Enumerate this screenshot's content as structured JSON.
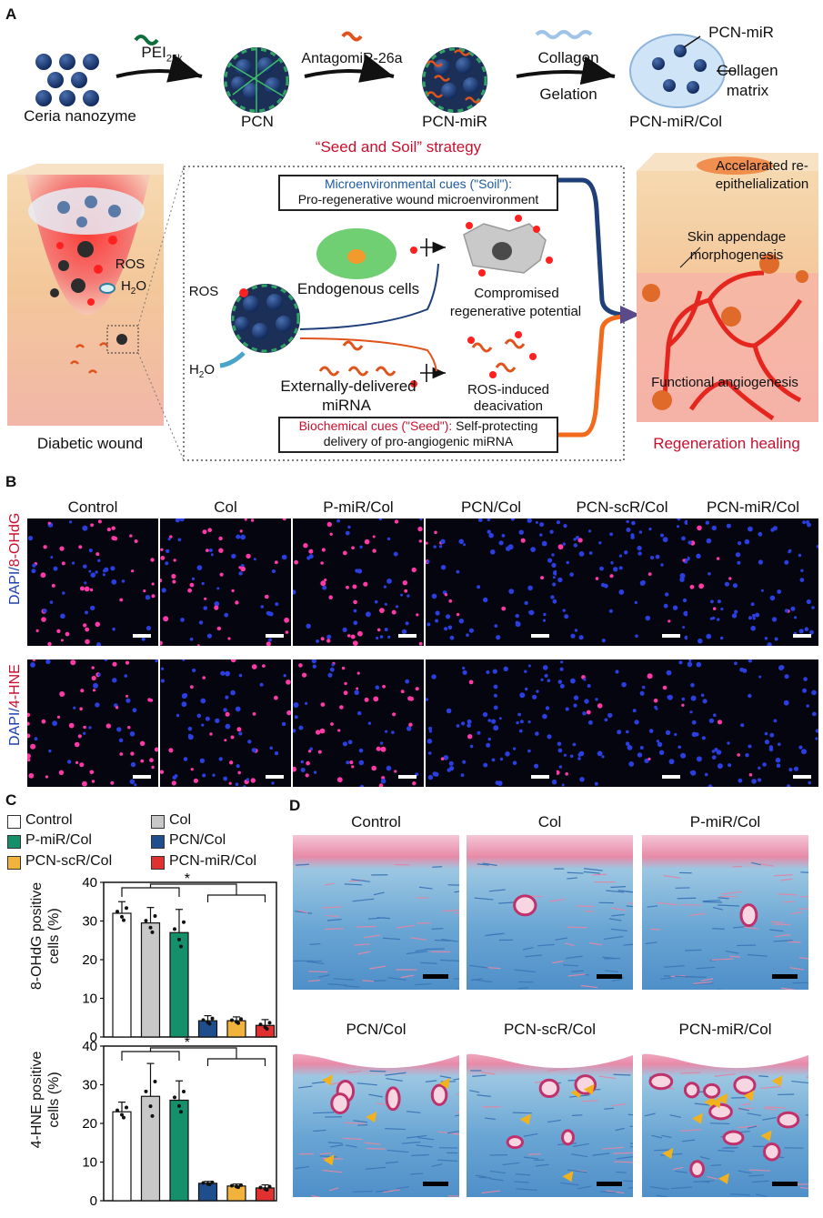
{
  "panel_labels": {
    "a": "A",
    "b": "B",
    "c": "C",
    "d": "D"
  },
  "panelA": {
    "ceria": "Ceria nanozyme",
    "pei": "PEI",
    "pei_sub": "25k",
    "pcn": "PCN",
    "antagomir": "AntagomiR-26a",
    "pcn_mir": "PCN-miR",
    "collagen": "Collagen",
    "gelation": "Gelation",
    "pcn_mir_col": "PCN-miR/Col",
    "callout_pcn_mir": "PCN-miR",
    "callout_matrix_1": "Collagen",
    "callout_matrix_2": "matrix",
    "strategy": "“Seed and Soil” strategy",
    "soil_title": "Microenvironmental cues (\"Soil\"):",
    "soil_text": "Pro-regenerative wound microenvironment",
    "ros_left": "ROS",
    "h2o_left": "H",
    "h2o_left_sub": "2",
    "h2o_left_end": "O",
    "ros_wound": "ROS",
    "h2o_wound": "H",
    "h2o_wound_sub": "2",
    "h2o_wound_end": "O",
    "endogenous": "Endogenous cells",
    "compromised_1": "Compromised",
    "compromised_2": "regenerative potential",
    "external_1": "Externally-delivered",
    "external_2": "miRNA",
    "ros_induced_1": "ROS-induced",
    "ros_induced_2": "deacivation",
    "seed_title": "Biochemical cues (\"Seed\"):",
    "seed_text_1": " Self-protecting",
    "seed_text_2": "delivery of pro-angiogenic miRNA",
    "diabetic_wound": "Diabetic wound",
    "reepi_1": "Accelarated re-",
    "reepi_2": "epithelialization",
    "skin_1": "Skin appendage",
    "skin_2": "morphogenesis",
    "angio": "Functional angiogenesis",
    "regen": "Regeneration healing"
  },
  "panelB": {
    "groups": [
      "Control",
      "Col",
      "P-miR/Col",
      "PCN/Col",
      "PCN-scR/Col",
      "PCN-miR/Col"
    ],
    "row1_label_a": "DAPI/",
    "row1_label_b": "8-OHdG",
    "row2_label_a": "DAPI/",
    "row2_label_b": "4-HNE"
  },
  "panelD": {
    "groups": [
      "Control",
      "Col",
      "P-miR/Col",
      "PCN/Col",
      "PCN-scR/Col",
      "PCN-miR/Col"
    ]
  },
  "chart_data": [
    {
      "type": "bar",
      "categories": [
        "Control",
        "Col",
        "P-miR/Col",
        "PCN/Col",
        "PCN-scR/Col",
        "PCN-miR/Col"
      ],
      "values": [
        32,
        29.5,
        27,
        4.2,
        4.2,
        3
      ],
      "errors": [
        3,
        4,
        6,
        1.3,
        1,
        1.5
      ],
      "colors": [
        "#ffffff",
        "#c8c8c8",
        "#16906a",
        "#1f4e8c",
        "#f2b33d",
        "#e03030"
      ],
      "ylabel": "8-OHdG positive cells (%)",
      "ylim": [
        0,
        40
      ],
      "yticks": [
        0,
        10,
        20,
        30,
        40
      ],
      "significance": "*"
    },
    {
      "type": "bar",
      "categories": [
        "Control",
        "Col",
        "P-miR/Col",
        "PCN/Col",
        "PCN-scR/Col",
        "PCN-miR/Col"
      ],
      "values": [
        23,
        27,
        26,
        4.5,
        3.8,
        3.3
      ],
      "errors": [
        2.5,
        8.5,
        5,
        0.5,
        0.5,
        0.8
      ],
      "colors": [
        "#ffffff",
        "#c8c8c8",
        "#16906a",
        "#1f4e8c",
        "#f2b33d",
        "#e03030"
      ],
      "ylabel": "4-HNE positive cells (%)",
      "ylim": [
        0,
        40
      ],
      "yticks": [
        0,
        10,
        20,
        30,
        40
      ],
      "significance": "*"
    }
  ],
  "legend": {
    "items": [
      {
        "label": "Control",
        "color": "#ffffff"
      },
      {
        "label": "Col",
        "color": "#c8c8c8"
      },
      {
        "label": "P-miR/Col",
        "color": "#16906a"
      },
      {
        "label": "PCN/Col",
        "color": "#1f4e8c"
      },
      {
        "label": "PCN-scR/Col",
        "color": "#f2b33d"
      },
      {
        "label": "PCN-miR/Col",
        "color": "#e03030"
      }
    ]
  }
}
